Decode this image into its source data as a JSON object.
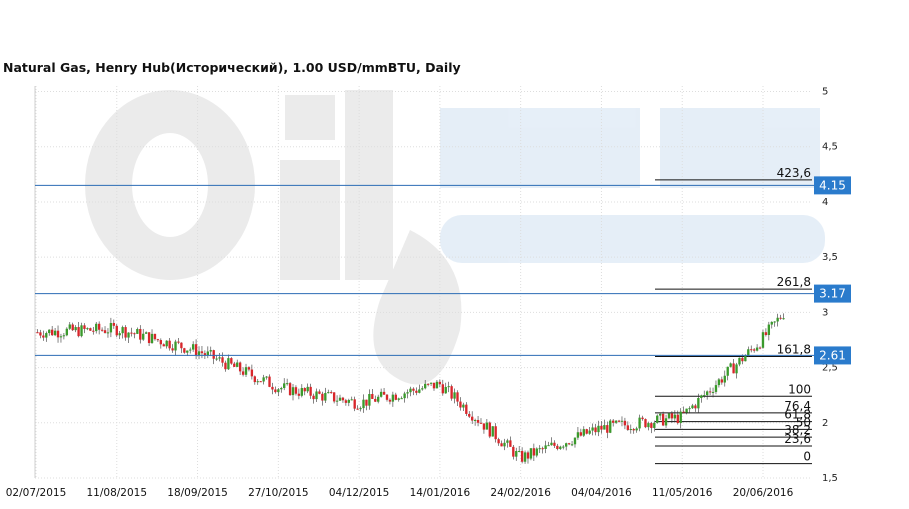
{
  "chart_data": {
    "type": "candlestick",
    "title": "Natural Gas, Henry Hub(Исторический), 1.00 USD/mmBTU, Daily",
    "xlabel": "",
    "ylabel": "",
    "ylim": [
      1.5,
      5.05
    ],
    "grid": true,
    "x_ticks": [
      "02/07/2015",
      "11/08/2015",
      "18/09/2015",
      "27/10/2015",
      "04/12/2015",
      "14/01/2016",
      "24/02/2016",
      "04/04/2016",
      "11/05/2016",
      "20/06/2016"
    ],
    "y_ticks": [
      "1,5",
      "2",
      "2,5",
      "3",
      "3,5",
      "4",
      "4,5",
      "5"
    ],
    "close_series": [
      {
        "date": "02/07/2015",
        "value": 2.82
      },
      {
        "date": "11/08/2015",
        "value": 2.85
      },
      {
        "date": "18/09/2015",
        "value": 2.65
      },
      {
        "date": "27/10/2015",
        "value": 2.32
      },
      {
        "date": "04/12/2015",
        "value": 2.18
      },
      {
        "date": "14/01/2016",
        "value": 2.35
      },
      {
        "date": "24/02/2016",
        "value": 1.68
      },
      {
        "date": "04/04/2016",
        "value": 1.95
      },
      {
        "date": "11/05/2016",
        "value": 2.05
      },
      {
        "date": "20/06/2016",
        "value": 2.75
      }
    ],
    "horizontal_levels": [
      {
        "label": "4.15",
        "value": 4.15
      },
      {
        "label": "3.17",
        "value": 3.17
      },
      {
        "label": "2.61",
        "value": 2.61
      }
    ],
    "fibonacci_levels": [
      {
        "label": "423,6",
        "value": 4.2
      },
      {
        "label": "261,8",
        "value": 3.21
      },
      {
        "label": "161,8",
        "value": 2.6
      },
      {
        "label": "100",
        "value": 2.24
      },
      {
        "label": "76,4",
        "value": 2.09
      },
      {
        "label": "61,8",
        "value": 2.01
      },
      {
        "label": "50",
        "value": 1.94
      },
      {
        "label": "38,2",
        "value": 1.87
      },
      {
        "label": "23,6",
        "value": 1.79
      },
      {
        "label": "0",
        "value": 1.63
      }
    ],
    "colors": {
      "up": "#3a9a2c",
      "down": "#d8262b",
      "level_line": "#2b6cb5",
      "price_tag": "#2a7bcc",
      "grid": "#dddddd"
    }
  }
}
